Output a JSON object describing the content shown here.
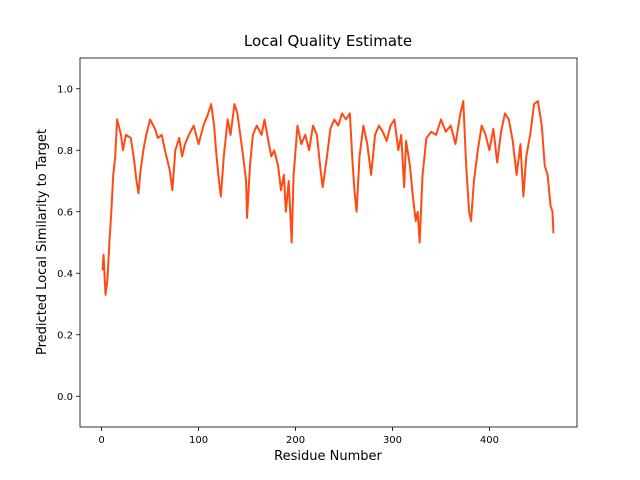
{
  "chart_data": {
    "type": "line",
    "title": "Local Quality Estimate",
    "x_label": "Residue Number",
    "y_label": "Predicted Local Similarity to Target",
    "x": [
      1,
      2,
      4,
      6,
      8,
      10,
      12,
      14,
      16,
      20,
      22,
      25,
      30,
      33,
      36,
      38,
      40,
      43,
      46,
      50,
      55,
      58,
      62,
      66,
      70,
      73,
      76,
      80,
      83,
      86,
      90,
      95,
      100,
      105,
      110,
      113,
      116,
      118,
      121,
      123,
      126,
      130,
      133,
      137,
      140,
      143,
      146,
      149,
      150,
      153,
      156,
      160,
      165,
      168,
      172,
      175,
      178,
      182,
      185,
      188,
      190,
      193,
      196,
      198,
      202,
      206,
      210,
      214,
      218,
      222,
      226,
      228,
      232,
      236,
      240,
      244,
      248,
      252,
      256,
      259,
      261,
      263,
      266,
      270,
      274,
      278,
      282,
      286,
      290,
      294,
      298,
      302,
      306,
      309,
      312,
      314,
      318,
      321,
      324,
      326,
      328,
      331,
      335,
      340,
      345,
      350,
      355,
      360,
      365,
      370,
      373,
      376,
      379,
      381,
      384,
      388,
      392,
      396,
      400,
      404,
      408,
      412,
      416,
      420,
      424,
      428,
      432,
      435,
      438,
      442,
      446,
      450,
      454,
      457,
      460,
      463,
      465,
      466
    ],
    "series": [
      {
        "color": "#ff4a14",
        "values": [
          0.41,
          0.46,
          0.33,
          0.38,
          0.5,
          0.6,
          0.72,
          0.78,
          0.9,
          0.85,
          0.8,
          0.85,
          0.84,
          0.78,
          0.7,
          0.66,
          0.73,
          0.8,
          0.85,
          0.9,
          0.87,
          0.84,
          0.85,
          0.79,
          0.74,
          0.67,
          0.8,
          0.84,
          0.78,
          0.82,
          0.85,
          0.88,
          0.82,
          0.88,
          0.92,
          0.95,
          0.88,
          0.8,
          0.7,
          0.65,
          0.78,
          0.9,
          0.85,
          0.95,
          0.92,
          0.85,
          0.78,
          0.7,
          0.58,
          0.75,
          0.85,
          0.88,
          0.85,
          0.9,
          0.83,
          0.78,
          0.8,
          0.75,
          0.67,
          0.72,
          0.6,
          0.7,
          0.5,
          0.72,
          0.88,
          0.82,
          0.85,
          0.8,
          0.88,
          0.85,
          0.73,
          0.68,
          0.77,
          0.87,
          0.9,
          0.88,
          0.92,
          0.9,
          0.92,
          0.75,
          0.66,
          0.6,
          0.78,
          0.88,
          0.82,
          0.72,
          0.85,
          0.88,
          0.86,
          0.83,
          0.88,
          0.9,
          0.8,
          0.85,
          0.68,
          0.83,
          0.75,
          0.65,
          0.57,
          0.6,
          0.5,
          0.72,
          0.84,
          0.86,
          0.85,
          0.9,
          0.86,
          0.88,
          0.82,
          0.92,
          0.96,
          0.75,
          0.6,
          0.57,
          0.7,
          0.8,
          0.88,
          0.85,
          0.8,
          0.87,
          0.76,
          0.86,
          0.92,
          0.9,
          0.83,
          0.72,
          0.82,
          0.65,
          0.78,
          0.85,
          0.95,
          0.96,
          0.88,
          0.75,
          0.72,
          0.62,
          0.6,
          0.53
        ]
      }
    ],
    "xlim": [
      -22.3,
      490.3
    ],
    "ylim": [
      -0.1,
      1.1
    ],
    "xticks": [
      0,
      100,
      200,
      300,
      400
    ],
    "yticks": [
      {
        "value": 0,
        "label": "0.0"
      },
      0.2,
      0.4,
      0.6,
      0.8,
      {
        "value": 1,
        "label": "1.0"
      }
    ],
    "grid": false
  }
}
